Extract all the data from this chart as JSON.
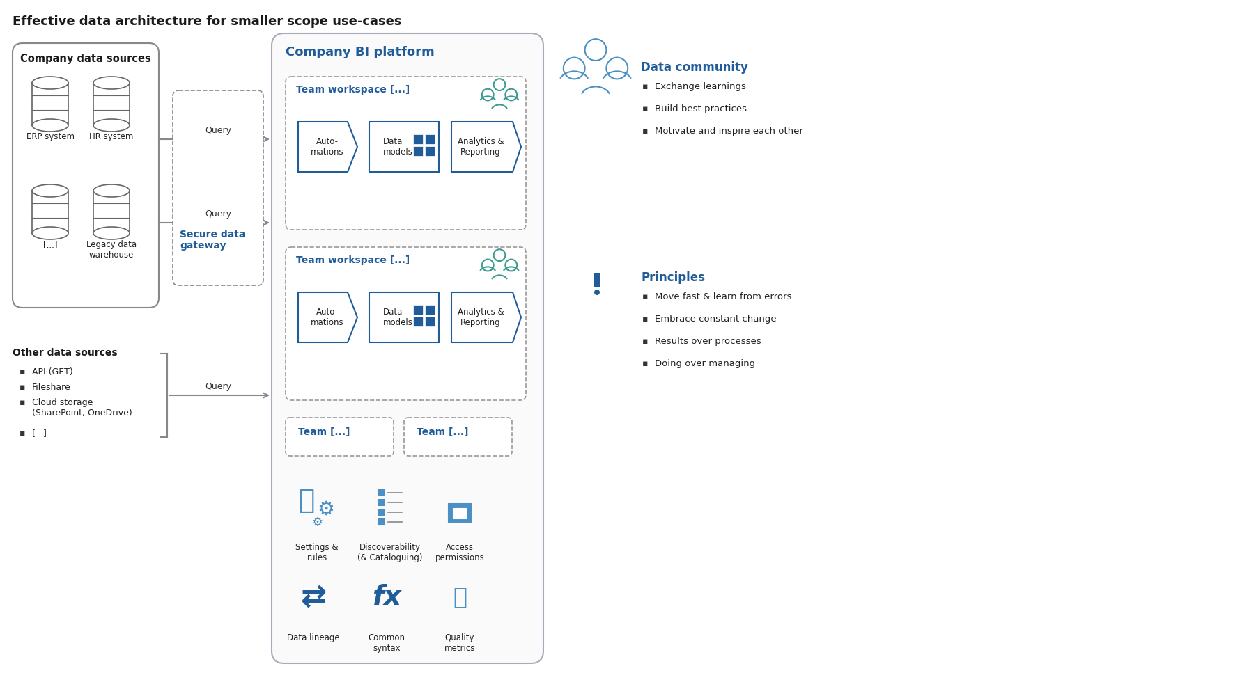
{
  "title": "Effective data architecture for smaller scope use-cases",
  "title_fontsize": 13,
  "title_color": "#1a1a1a",
  "bg_color": "#ffffff",
  "blue": "#1f5c99",
  "teal": "#3a9a8f",
  "gray_edge": "#999999",
  "text_dark": "#1a1a1a",
  "community_title": "Data community",
  "community_items": [
    "Exchange learnings",
    "Build best practices",
    "Motivate and inspire each other"
  ],
  "principles_title": "Principles",
  "principles_items": [
    "Move fast & learn from errors",
    "Embrace constant change",
    "Results over processes",
    "Doing over managing"
  ]
}
